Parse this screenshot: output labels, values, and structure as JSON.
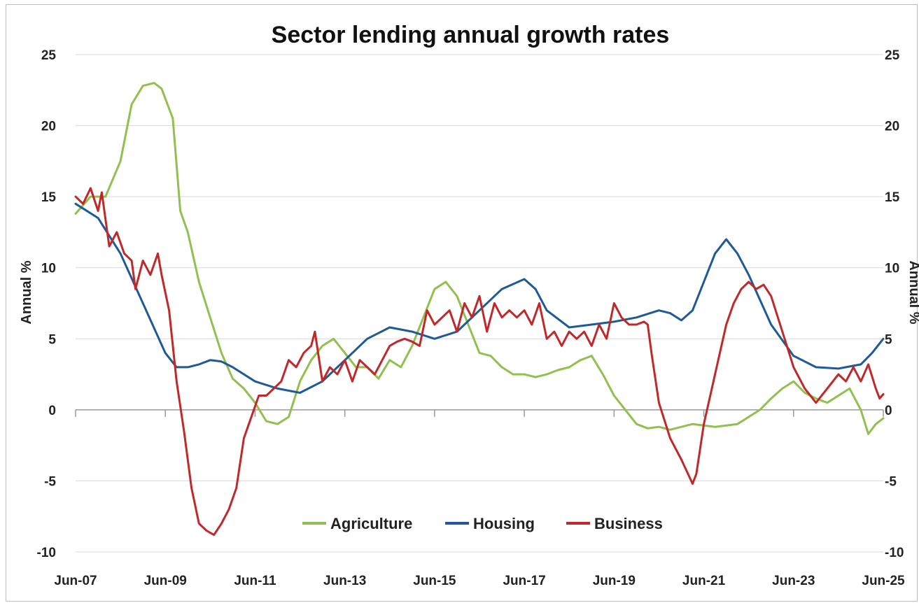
{
  "chart_data": {
    "type": "line",
    "title": "Sector lending annual growth rates",
    "ylabel_left": "Annual %",
    "ylabel_right": "Annual %",
    "ylim": [
      -10,
      25
    ],
    "y_ticks": [
      "25",
      "20",
      "15",
      "10",
      "5",
      "0",
      "-5",
      "-10"
    ],
    "x_tick_labels": [
      "Jun-07",
      "Jun-09",
      "Jun-11",
      "Jun-13",
      "Jun-15",
      "Jun-17",
      "Jun-19",
      "Jun-21",
      "Jun-23",
      "Jun-25"
    ],
    "grid": true,
    "legend_position": "bottom-center",
    "series": [
      {
        "name": "Agriculture",
        "color": "#92c050",
        "points": [
          [
            "Jun-07",
            13.8
          ],
          [
            "Oct-07",
            15.0
          ],
          [
            "Feb-08",
            15.0
          ],
          [
            "Jun-08",
            17.5
          ],
          [
            "Sep-08",
            21.5
          ],
          [
            "Dec-08",
            22.8
          ],
          [
            "Mar-09",
            23.0
          ],
          [
            "May-09",
            22.6
          ],
          [
            "Aug-09",
            20.5
          ],
          [
            "Oct-09",
            14.0
          ],
          [
            "Dec-09",
            12.5
          ],
          [
            "Mar-10",
            9.0
          ],
          [
            "Jun-10",
            6.5
          ],
          [
            "Sep-10",
            4.0
          ],
          [
            "Dec-10",
            2.2
          ],
          [
            "Mar-11",
            1.5
          ],
          [
            "Jun-11",
            0.5
          ],
          [
            "Sep-11",
            -0.8
          ],
          [
            "Dec-11",
            -1.0
          ],
          [
            "Mar-12",
            -0.5
          ],
          [
            "Jun-12",
            2.0
          ],
          [
            "Sep-12",
            3.5
          ],
          [
            "Dec-12",
            4.5
          ],
          [
            "Mar-13",
            5.0
          ],
          [
            "Jun-13",
            4.0
          ],
          [
            "Sep-13",
            3.0
          ],
          [
            "Dec-13",
            3.0
          ],
          [
            "Mar-14",
            2.2
          ],
          [
            "Jun-14",
            3.5
          ],
          [
            "Sep-14",
            3.0
          ],
          [
            "Dec-14",
            4.5
          ],
          [
            "Mar-15",
            6.5
          ],
          [
            "Jun-15",
            8.5
          ],
          [
            "Sep-15",
            9.0
          ],
          [
            "Dec-15",
            8.0
          ],
          [
            "Mar-16",
            6.0
          ],
          [
            "Jun-16",
            4.0
          ],
          [
            "Sep-16",
            3.8
          ],
          [
            "Dec-16",
            3.0
          ],
          [
            "Mar-17",
            2.5
          ],
          [
            "Jun-17",
            2.5
          ],
          [
            "Sep-17",
            2.3
          ],
          [
            "Dec-17",
            2.5
          ],
          [
            "Mar-18",
            2.8
          ],
          [
            "Jun-18",
            3.0
          ],
          [
            "Sep-18",
            3.5
          ],
          [
            "Dec-18",
            3.8
          ],
          [
            "Mar-19",
            2.5
          ],
          [
            "Jun-19",
            1.0
          ],
          [
            "Sep-19",
            0.0
          ],
          [
            "Dec-19",
            -1.0
          ],
          [
            "Mar-20",
            -1.3
          ],
          [
            "Jun-20",
            -1.2
          ],
          [
            "Sep-20",
            -1.4
          ],
          [
            "Dec-20",
            -1.2
          ],
          [
            "Mar-21",
            -1.0
          ],
          [
            "Jun-21",
            -1.1
          ],
          [
            "Sep-21",
            -1.2
          ],
          [
            "Dec-21",
            -1.1
          ],
          [
            "Mar-22",
            -1.0
          ],
          [
            "Jun-22",
            -0.5
          ],
          [
            "Sep-22",
            0.0
          ],
          [
            "Dec-22",
            0.8
          ],
          [
            "Mar-23",
            1.5
          ],
          [
            "Jun-23",
            2.0
          ],
          [
            "Sep-23",
            1.2
          ],
          [
            "Dec-23",
            0.8
          ],
          [
            "Mar-24",
            0.5
          ],
          [
            "Jun-24",
            1.0
          ],
          [
            "Sep-24",
            1.5
          ],
          [
            "Dec-24",
            0.0
          ],
          [
            "Feb-25",
            -1.7
          ],
          [
            "Apr-25",
            -1.0
          ],
          [
            "Jun-25",
            -0.6
          ]
        ]
      },
      {
        "name": "Housing",
        "color": "#1f5a96",
        "points": [
          [
            "Jun-07",
            14.5
          ],
          [
            "Dec-07",
            13.5
          ],
          [
            "Jun-08",
            11.0
          ],
          [
            "Dec-08",
            7.5
          ],
          [
            "Jun-09",
            4.0
          ],
          [
            "Sep-09",
            3.0
          ],
          [
            "Dec-09",
            3.0
          ],
          [
            "Mar-10",
            3.2
          ],
          [
            "Jun-10",
            3.5
          ],
          [
            "Sep-10",
            3.4
          ],
          [
            "Dec-10",
            3.0
          ],
          [
            "Jun-11",
            2.0
          ],
          [
            "Dec-11",
            1.5
          ],
          [
            "Jun-12",
            1.2
          ],
          [
            "Dec-12",
            2.0
          ],
          [
            "Jun-13",
            3.5
          ],
          [
            "Dec-13",
            5.0
          ],
          [
            "Jun-14",
            5.8
          ],
          [
            "Dec-14",
            5.5
          ],
          [
            "Jun-15",
            5.0
          ],
          [
            "Dec-15",
            5.5
          ],
          [
            "Jun-16",
            7.0
          ],
          [
            "Dec-16",
            8.5
          ],
          [
            "Jun-17",
            9.2
          ],
          [
            "Sep-17",
            8.5
          ],
          [
            "Dec-17",
            7.0
          ],
          [
            "Jun-18",
            5.8
          ],
          [
            "Dec-18",
            6.0
          ],
          [
            "Jun-19",
            6.2
          ],
          [
            "Dec-19",
            6.5
          ],
          [
            "Jun-20",
            7.0
          ],
          [
            "Sep-20",
            6.8
          ],
          [
            "Dec-20",
            6.3
          ],
          [
            "Mar-21",
            7.0
          ],
          [
            "Jun-21",
            9.0
          ],
          [
            "Sep-21",
            11.0
          ],
          [
            "Dec-21",
            12.0
          ],
          [
            "Mar-22",
            11.0
          ],
          [
            "Jun-22",
            9.5
          ],
          [
            "Dec-22",
            6.0
          ],
          [
            "Jun-23",
            3.8
          ],
          [
            "Dec-23",
            3.0
          ],
          [
            "Jun-24",
            2.9
          ],
          [
            "Dec-24",
            3.2
          ],
          [
            "Mar-25",
            4.0
          ],
          [
            "Jun-25",
            5.0
          ]
        ]
      },
      {
        "name": "Business",
        "color": "#c0282a",
        "points": [
          [
            "Jun-07",
            15.0
          ],
          [
            "Aug-07",
            14.5
          ],
          [
            "Oct-07",
            15.6
          ],
          [
            "Dec-07",
            14.0
          ],
          [
            "Jan-08",
            15.3
          ],
          [
            "Mar-08",
            11.5
          ],
          [
            "May-08",
            12.5
          ],
          [
            "Jul-08",
            11.0
          ],
          [
            "Sep-08",
            10.5
          ],
          [
            "Oct-08",
            8.5
          ],
          [
            "Dec-08",
            10.5
          ],
          [
            "Feb-09",
            9.5
          ],
          [
            "Apr-09",
            11.0
          ],
          [
            "May-09",
            9.5
          ],
          [
            "Jul-09",
            7.0
          ],
          [
            "Sep-09",
            2.0
          ],
          [
            "Nov-09",
            -1.5
          ],
          [
            "Jan-10",
            -5.5
          ],
          [
            "Mar-10",
            -8.0
          ],
          [
            "May-10",
            -8.5
          ],
          [
            "Jul-10",
            -8.8
          ],
          [
            "Sep-10",
            -8.0
          ],
          [
            "Nov-10",
            -7.0
          ],
          [
            "Jan-11",
            -5.5
          ],
          [
            "Mar-11",
            -2.0
          ],
          [
            "May-11",
            -0.5
          ],
          [
            "Jul-11",
            1.0
          ],
          [
            "Sep-11",
            1.0
          ],
          [
            "Nov-11",
            1.5
          ],
          [
            "Jan-12",
            2.0
          ],
          [
            "Mar-12",
            3.5
          ],
          [
            "May-12",
            3.0
          ],
          [
            "Jul-12",
            4.0
          ],
          [
            "Sep-12",
            4.5
          ],
          [
            "Oct-12",
            5.5
          ],
          [
            "Dec-12",
            2.0
          ],
          [
            "Feb-13",
            3.0
          ],
          [
            "Apr-13",
            2.5
          ],
          [
            "Jun-13",
            3.5
          ],
          [
            "Aug-13",
            2.0
          ],
          [
            "Oct-13",
            3.5
          ],
          [
            "Dec-13",
            3.0
          ],
          [
            "Feb-14",
            2.5
          ],
          [
            "Apr-14",
            3.5
          ],
          [
            "Jun-14",
            4.5
          ],
          [
            "Aug-14",
            4.8
          ],
          [
            "Oct-14",
            5.0
          ],
          [
            "Dec-14",
            4.8
          ],
          [
            "Feb-15",
            4.5
          ],
          [
            "Apr-15",
            7.0
          ],
          [
            "Jun-15",
            6.0
          ],
          [
            "Aug-15",
            6.5
          ],
          [
            "Oct-15",
            7.0
          ],
          [
            "Dec-15",
            5.5
          ],
          [
            "Feb-16",
            7.5
          ],
          [
            "Apr-16",
            6.5
          ],
          [
            "Jun-16",
            8.0
          ],
          [
            "Aug-16",
            5.5
          ],
          [
            "Oct-16",
            7.5
          ],
          [
            "Dec-16",
            6.5
          ],
          [
            "Feb-17",
            7.0
          ],
          [
            "Apr-17",
            6.5
          ],
          [
            "Jun-17",
            7.0
          ],
          [
            "Aug-17",
            6.0
          ],
          [
            "Oct-17",
            7.5
          ],
          [
            "Dec-17",
            5.0
          ],
          [
            "Feb-18",
            5.5
          ],
          [
            "Apr-18",
            4.5
          ],
          [
            "Jun-18",
            5.5
          ],
          [
            "Aug-18",
            5.0
          ],
          [
            "Oct-18",
            5.5
          ],
          [
            "Dec-18",
            4.5
          ],
          [
            "Feb-19",
            6.0
          ],
          [
            "Apr-19",
            5.0
          ],
          [
            "Jun-19",
            7.5
          ],
          [
            "Aug-19",
            6.5
          ],
          [
            "Oct-19",
            6.0
          ],
          [
            "Dec-19",
            6.0
          ],
          [
            "Feb-20",
            6.2
          ],
          [
            "Mar-20",
            6.0
          ],
          [
            "Apr-20",
            4.0
          ],
          [
            "Jun-20",
            0.5
          ],
          [
            "Sep-20",
            -2.0
          ],
          [
            "Dec-20",
            -3.5
          ],
          [
            "Mar-21",
            -5.2
          ],
          [
            "Apr-21",
            -4.5
          ],
          [
            "Jun-21",
            -1.0
          ],
          [
            "Sep-21",
            2.5
          ],
          [
            "Dec-21",
            6.0
          ],
          [
            "Feb-22",
            7.5
          ],
          [
            "Apr-22",
            8.5
          ],
          [
            "Jun-22",
            9.0
          ],
          [
            "Aug-22",
            8.5
          ],
          [
            "Oct-22",
            8.8
          ],
          [
            "Dec-22",
            8.0
          ],
          [
            "Mar-23",
            5.5
          ],
          [
            "Jun-23",
            3.0
          ],
          [
            "Sep-23",
            1.5
          ],
          [
            "Dec-23",
            0.5
          ],
          [
            "Mar-24",
            1.5
          ],
          [
            "Jun-24",
            2.5
          ],
          [
            "Aug-24",
            2.0
          ],
          [
            "Oct-24",
            3.0
          ],
          [
            "Dec-24",
            2.0
          ],
          [
            "Feb-25",
            3.2
          ],
          [
            "Apr-25",
            1.5
          ],
          [
            "May-25",
            0.8
          ],
          [
            "Jun-25",
            1.1
          ]
        ]
      }
    ]
  }
}
